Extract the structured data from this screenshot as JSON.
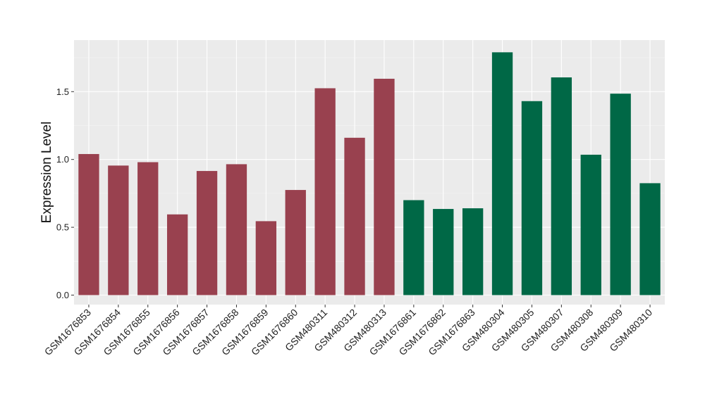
{
  "chart_data": {
    "type": "bar",
    "ylabel": "Expression Level",
    "xlabel": "",
    "ylim": [
      -0.07,
      1.88
    ],
    "yticks": [
      "0.0",
      "0.5",
      "1.0",
      "1.5"
    ],
    "ytick_values": [
      0,
      0.5,
      1.0,
      1.5
    ],
    "grid": true,
    "legend": "none",
    "categories": [
      "GSM1676853",
      "GSM1676854",
      "GSM1676855",
      "GSM1676856",
      "GSM1676857",
      "GSM1676858",
      "GSM1676859",
      "GSM1676860",
      "GSM480311",
      "GSM480312",
      "GSM480313",
      "GSM1676861",
      "GSM1676862",
      "GSM1676863",
      "GSM480304",
      "GSM480305",
      "GSM480307",
      "GSM480308",
      "GSM480309",
      "GSM480310"
    ],
    "values": [
      1.04,
      0.955,
      0.98,
      0.595,
      0.915,
      0.965,
      0.545,
      0.775,
      1.525,
      1.16,
      1.595,
      0.7,
      0.635,
      0.64,
      1.79,
      1.43,
      1.605,
      1.035,
      1.485,
      0.825
    ],
    "bar_colors": [
      "#99414f",
      "#99414f",
      "#99414f",
      "#99414f",
      "#99414f",
      "#99414f",
      "#99414f",
      "#99414f",
      "#99414f",
      "#99414f",
      "#99414f",
      "#006846",
      "#006846",
      "#006846",
      "#006846",
      "#006846",
      "#006846",
      "#006846",
      "#006846",
      "#006846"
    ],
    "colors": {
      "panel_background": "#ebebeb",
      "grid_major": "#ffffff",
      "grid_minor": "#f5f5f5",
      "group_a": "#99414f",
      "group_b": "#006846"
    }
  }
}
